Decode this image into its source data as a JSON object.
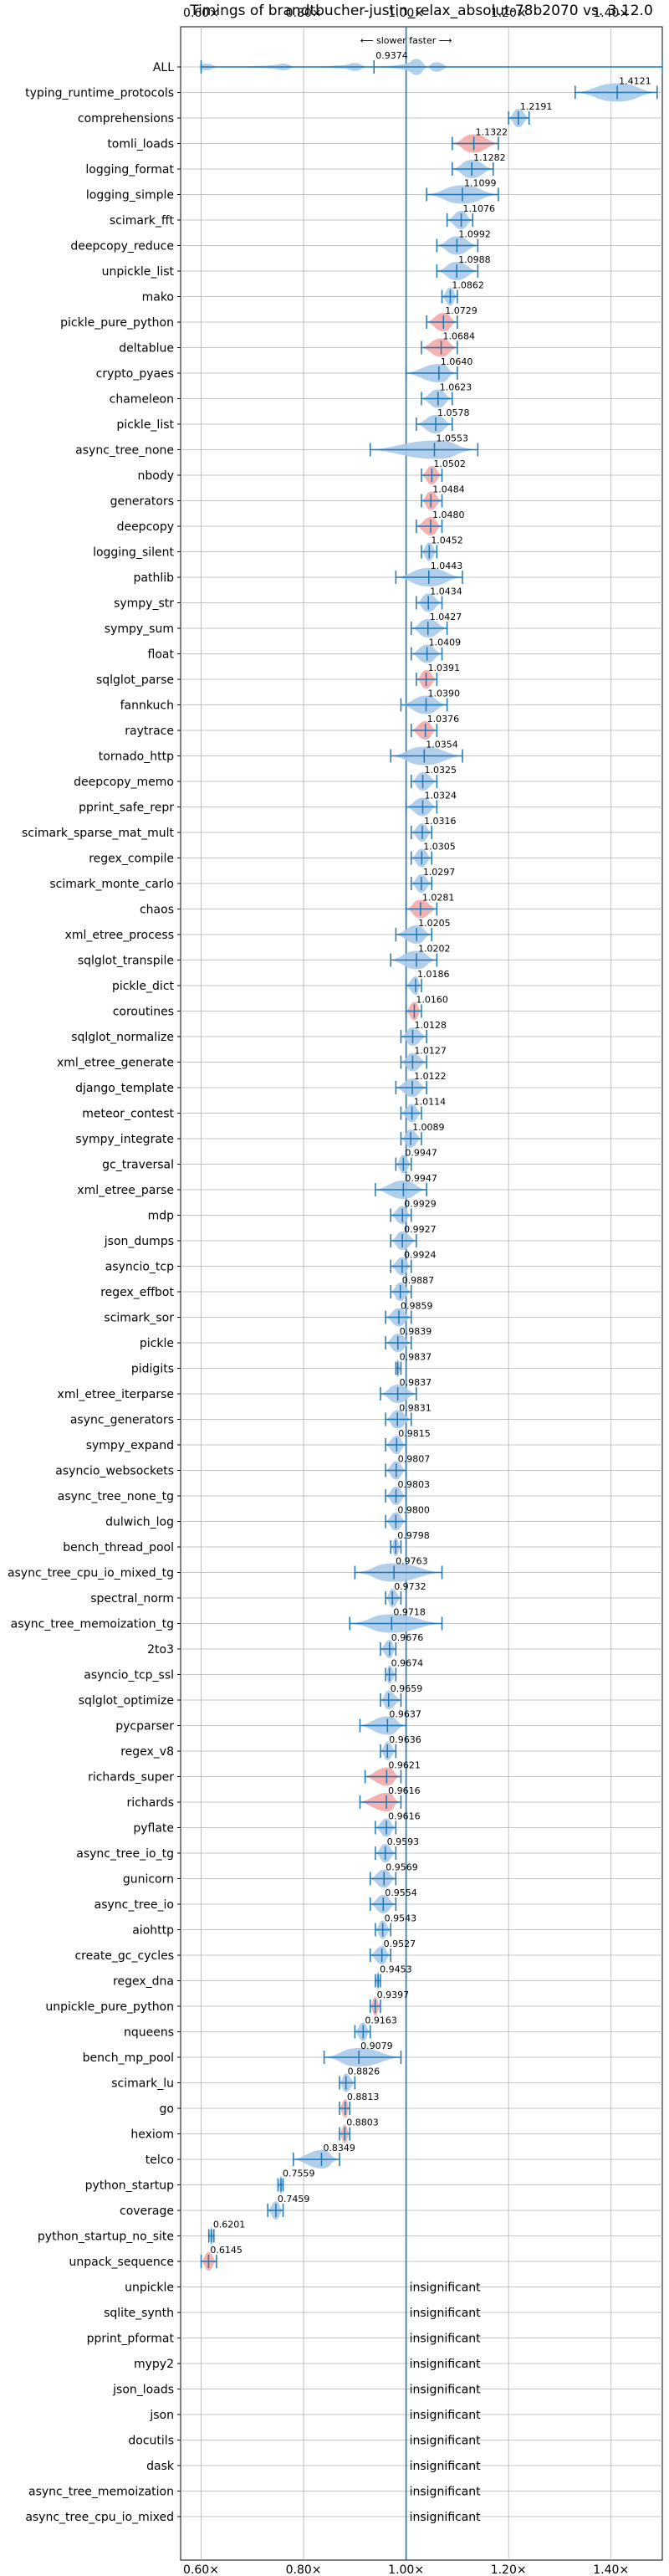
{
  "chart_data": {
    "type": "violin",
    "title": "Timings of brandtbucher-justin_relax_absolut-78b2070 vs. 3.12.0",
    "direction_label": "⟵ slower   faster ⟶",
    "xlim": [
      0.56,
      1.5
    ],
    "x_ticks": [
      "0.60×",
      "0.80×",
      "1.00×",
      "1.20×",
      "1.40×"
    ],
    "x_tick_values": [
      0.6,
      0.8,
      1.0,
      1.2,
      1.4
    ],
    "reference_x": 1.0,
    "colors": {
      "faster": "#a9c9e9",
      "slower": "#f4a7a7",
      "line": "#1f77b4",
      "grid": "#b0b0b0"
    },
    "insignificant_label": "insignificant",
    "benchmarks": [
      {
        "name": "ALL",
        "value": 0.9374,
        "label": "0.9374",
        "color": "blue",
        "shape": "multi",
        "min": 0.6,
        "max": 1.5
      },
      {
        "name": "typing_runtime_protocols",
        "value": 1.4121,
        "label": "1.4121",
        "color": "blue",
        "min": 1.33,
        "max": 1.49
      },
      {
        "name": "comprehensions",
        "value": 1.2191,
        "label": "1.2191",
        "color": "blue",
        "min": 1.2,
        "max": 1.24
      },
      {
        "name": "tomli_loads",
        "value": 1.1322,
        "label": "1.1322",
        "color": "red",
        "min": 1.09,
        "max": 1.18
      },
      {
        "name": "logging_format",
        "value": 1.1282,
        "label": "1.1282",
        "color": "blue",
        "min": 1.09,
        "max": 1.17
      },
      {
        "name": "logging_simple",
        "value": 1.1099,
        "label": "1.1099",
        "color": "blue",
        "min": 1.04,
        "max": 1.18
      },
      {
        "name": "scimark_fft",
        "value": 1.1076,
        "label": "1.1076",
        "color": "blue",
        "min": 1.08,
        "max": 1.13
      },
      {
        "name": "deepcopy_reduce",
        "value": 1.0992,
        "label": "1.0992",
        "color": "blue",
        "min": 1.06,
        "max": 1.14
      },
      {
        "name": "unpickle_list",
        "value": 1.0988,
        "label": "1.0988",
        "color": "blue",
        "min": 1.06,
        "max": 1.14
      },
      {
        "name": "mako",
        "value": 1.0862,
        "label": "1.0862",
        "color": "blue",
        "min": 1.07,
        "max": 1.1
      },
      {
        "name": "pickle_pure_python",
        "value": 1.0729,
        "label": "1.0729",
        "color": "red",
        "min": 1.04,
        "max": 1.1
      },
      {
        "name": "deltablue",
        "value": 1.0684,
        "label": "1.0684",
        "color": "red",
        "min": 1.03,
        "max": 1.1
      },
      {
        "name": "crypto_pyaes",
        "value": 1.064,
        "label": "1.0640",
        "color": "blue",
        "min": 1.0,
        "max": 1.1
      },
      {
        "name": "chameleon",
        "value": 1.0623,
        "label": "1.0623",
        "color": "blue",
        "min": 1.03,
        "max": 1.09
      },
      {
        "name": "pickle_list",
        "value": 1.0578,
        "label": "1.0578",
        "color": "blue",
        "min": 1.02,
        "max": 1.09
      },
      {
        "name": "async_tree_none",
        "value": 1.0553,
        "label": "1.0553",
        "color": "blue",
        "min": 0.93,
        "max": 1.14
      },
      {
        "name": "nbody",
        "value": 1.0502,
        "label": "1.0502",
        "color": "red",
        "min": 1.03,
        "max": 1.07
      },
      {
        "name": "generators",
        "value": 1.0484,
        "label": "1.0484",
        "color": "red",
        "min": 1.03,
        "max": 1.07
      },
      {
        "name": "deepcopy",
        "value": 1.048,
        "label": "1.0480",
        "color": "red",
        "min": 1.02,
        "max": 1.07
      },
      {
        "name": "logging_silent",
        "value": 1.0452,
        "label": "1.0452",
        "color": "blue",
        "min": 1.03,
        "max": 1.06
      },
      {
        "name": "pathlib",
        "value": 1.0443,
        "label": "1.0443",
        "color": "blue",
        "min": 0.98,
        "max": 1.11
      },
      {
        "name": "sympy_str",
        "value": 1.0434,
        "label": "1.0434",
        "color": "blue",
        "min": 1.02,
        "max": 1.07
      },
      {
        "name": "sympy_sum",
        "value": 1.0427,
        "label": "1.0427",
        "color": "blue",
        "min": 1.01,
        "max": 1.08
      },
      {
        "name": "float",
        "value": 1.0409,
        "label": "1.0409",
        "color": "blue",
        "min": 1.01,
        "max": 1.07
      },
      {
        "name": "sqlglot_parse",
        "value": 1.0391,
        "label": "1.0391",
        "color": "red",
        "min": 1.02,
        "max": 1.06
      },
      {
        "name": "fannkuch",
        "value": 1.039,
        "label": "1.0390",
        "color": "blue",
        "min": 0.99,
        "max": 1.08
      },
      {
        "name": "raytrace",
        "value": 1.0376,
        "label": "1.0376",
        "color": "red",
        "min": 1.01,
        "max": 1.06
      },
      {
        "name": "tornado_http",
        "value": 1.0354,
        "label": "1.0354",
        "color": "blue",
        "min": 0.97,
        "max": 1.11
      },
      {
        "name": "deepcopy_memo",
        "value": 1.0325,
        "label": "1.0325",
        "color": "blue",
        "min": 1.01,
        "max": 1.06
      },
      {
        "name": "pprint_safe_repr",
        "value": 1.0324,
        "label": "1.0324",
        "color": "blue",
        "min": 1.0,
        "max": 1.06
      },
      {
        "name": "scimark_sparse_mat_mult",
        "value": 1.0316,
        "label": "1.0316",
        "color": "blue",
        "min": 1.01,
        "max": 1.05
      },
      {
        "name": "regex_compile",
        "value": 1.0305,
        "label": "1.0305",
        "color": "blue",
        "min": 1.01,
        "max": 1.05
      },
      {
        "name": "scimark_monte_carlo",
        "value": 1.0297,
        "label": "1.0297",
        "color": "blue",
        "min": 1.01,
        "max": 1.05
      },
      {
        "name": "chaos",
        "value": 1.0281,
        "label": "1.0281",
        "color": "red",
        "min": 1.0,
        "max": 1.06
      },
      {
        "name": "xml_etree_process",
        "value": 1.0205,
        "label": "1.0205",
        "color": "blue",
        "min": 0.98,
        "max": 1.05
      },
      {
        "name": "sqlglot_transpile",
        "value": 1.0202,
        "label": "1.0202",
        "color": "blue",
        "min": 0.97,
        "max": 1.06
      },
      {
        "name": "pickle_dict",
        "value": 1.0186,
        "label": "1.0186",
        "color": "blue",
        "min": 1.0,
        "max": 1.03
      },
      {
        "name": "coroutines",
        "value": 1.016,
        "label": "1.0160",
        "color": "red",
        "min": 1.0,
        "max": 1.03
      },
      {
        "name": "sqlglot_normalize",
        "value": 1.0128,
        "label": "1.0128",
        "color": "blue",
        "min": 0.99,
        "max": 1.04
      },
      {
        "name": "xml_etree_generate",
        "value": 1.0127,
        "label": "1.0127",
        "color": "blue",
        "min": 0.99,
        "max": 1.04
      },
      {
        "name": "django_template",
        "value": 1.0122,
        "label": "1.0122",
        "color": "blue",
        "min": 0.98,
        "max": 1.04
      },
      {
        "name": "meteor_contest",
        "value": 1.0114,
        "label": "1.0114",
        "color": "blue",
        "min": 0.99,
        "max": 1.03
      },
      {
        "name": "sympy_integrate",
        "value": 1.0089,
        "label": "1.0089",
        "color": "blue",
        "min": 0.99,
        "max": 1.03
      },
      {
        "name": "gc_traversal",
        "value": 0.9947,
        "label": "0.9947",
        "color": "blue",
        "min": 0.98,
        "max": 1.01
      },
      {
        "name": "xml_etree_parse",
        "value": 0.9947,
        "label": "0.9947",
        "color": "blue",
        "min": 0.94,
        "max": 1.04
      },
      {
        "name": "mdp",
        "value": 0.9929,
        "label": "0.9929",
        "color": "blue",
        "min": 0.97,
        "max": 1.01
      },
      {
        "name": "json_dumps",
        "value": 0.9927,
        "label": "0.9927",
        "color": "blue",
        "min": 0.97,
        "max": 1.02
      },
      {
        "name": "asyncio_tcp",
        "value": 0.9924,
        "label": "0.9924",
        "color": "blue",
        "min": 0.97,
        "max": 1.01
      },
      {
        "name": "regex_effbot",
        "value": 0.9887,
        "label": "0.9887",
        "color": "blue",
        "min": 0.97,
        "max": 1.01
      },
      {
        "name": "scimark_sor",
        "value": 0.9859,
        "label": "0.9859",
        "color": "blue",
        "min": 0.96,
        "max": 1.01
      },
      {
        "name": "pickle",
        "value": 0.9839,
        "label": "0.9839",
        "color": "blue",
        "min": 0.96,
        "max": 1.01
      },
      {
        "name": "pidigits",
        "value": 0.9837,
        "label": "0.9837",
        "color": "blue",
        "min": 0.98,
        "max": 0.99
      },
      {
        "name": "xml_etree_iterparse",
        "value": 0.9837,
        "label": "0.9837",
        "color": "blue",
        "min": 0.95,
        "max": 1.02
      },
      {
        "name": "async_generators",
        "value": 0.9831,
        "label": "0.9831",
        "color": "blue",
        "min": 0.96,
        "max": 1.01
      },
      {
        "name": "sympy_expand",
        "value": 0.9815,
        "label": "0.9815",
        "color": "blue",
        "min": 0.96,
        "max": 1.0
      },
      {
        "name": "asyncio_websockets",
        "value": 0.9807,
        "label": "0.9807",
        "color": "blue",
        "min": 0.96,
        "max": 1.0
      },
      {
        "name": "async_tree_none_tg",
        "value": 0.9803,
        "label": "0.9803",
        "color": "blue",
        "min": 0.96,
        "max": 1.0
      },
      {
        "name": "dulwich_log",
        "value": 0.98,
        "label": "0.9800",
        "color": "blue",
        "min": 0.96,
        "max": 1.0
      },
      {
        "name": "bench_thread_pool",
        "value": 0.9798,
        "label": "0.9798",
        "color": "blue",
        "min": 0.97,
        "max": 0.99
      },
      {
        "name": "async_tree_cpu_io_mixed_tg",
        "value": 0.9763,
        "label": "0.9763",
        "color": "blue",
        "min": 0.9,
        "max": 1.07
      },
      {
        "name": "spectral_norm",
        "value": 0.9732,
        "label": "0.9732",
        "color": "blue",
        "min": 0.96,
        "max": 0.99
      },
      {
        "name": "async_tree_memoization_tg",
        "value": 0.9718,
        "label": "0.9718",
        "color": "blue",
        "min": 0.89,
        "max": 1.07
      },
      {
        "name": "2to3",
        "value": 0.9676,
        "label": "0.9676",
        "color": "blue",
        "min": 0.95,
        "max": 0.98
      },
      {
        "name": "asyncio_tcp_ssl",
        "value": 0.9674,
        "label": "0.9674",
        "color": "blue",
        "min": 0.96,
        "max": 0.98
      },
      {
        "name": "sqlglot_optimize",
        "value": 0.9659,
        "label": "0.9659",
        "color": "blue",
        "min": 0.95,
        "max": 0.99
      },
      {
        "name": "pycparser",
        "value": 0.9637,
        "label": "0.9637",
        "color": "blue",
        "min": 0.91,
        "max": 1.0
      },
      {
        "name": "regex_v8",
        "value": 0.9636,
        "label": "0.9636",
        "color": "blue",
        "min": 0.95,
        "max": 0.98
      },
      {
        "name": "richards_super",
        "value": 0.9621,
        "label": "0.9621",
        "color": "red",
        "min": 0.92,
        "max": 0.99
      },
      {
        "name": "richards",
        "value": 0.9616,
        "label": "0.9616",
        "color": "red",
        "min": 0.91,
        "max": 0.99
      },
      {
        "name": "pyflate",
        "value": 0.9616,
        "label": "0.9616",
        "color": "blue",
        "min": 0.94,
        "max": 0.98
      },
      {
        "name": "async_tree_io_tg",
        "value": 0.9593,
        "label": "0.9593",
        "color": "blue",
        "min": 0.94,
        "max": 0.98
      },
      {
        "name": "gunicorn",
        "value": 0.9569,
        "label": "0.9569",
        "color": "blue",
        "min": 0.93,
        "max": 0.98
      },
      {
        "name": "async_tree_io",
        "value": 0.9554,
        "label": "0.9554",
        "color": "blue",
        "min": 0.93,
        "max": 0.98
      },
      {
        "name": "aiohttp",
        "value": 0.9543,
        "label": "0.9543",
        "color": "blue",
        "min": 0.94,
        "max": 0.97
      },
      {
        "name": "create_gc_cycles",
        "value": 0.9527,
        "label": "0.9527",
        "color": "blue",
        "min": 0.93,
        "max": 0.97
      },
      {
        "name": "regex_dna",
        "value": 0.9453,
        "label": "0.9453",
        "color": "blue",
        "min": 0.94,
        "max": 0.95
      },
      {
        "name": "unpickle_pure_python",
        "value": 0.9397,
        "label": "0.9397",
        "color": "red",
        "min": 0.93,
        "max": 0.95
      },
      {
        "name": "nqueens",
        "value": 0.9163,
        "label": "0.9163",
        "color": "blue",
        "min": 0.9,
        "max": 0.93
      },
      {
        "name": "bench_mp_pool",
        "value": 0.9079,
        "label": "0.9079",
        "color": "blue",
        "min": 0.84,
        "max": 0.99
      },
      {
        "name": "scimark_lu",
        "value": 0.8826,
        "label": "0.8826",
        "color": "blue",
        "min": 0.87,
        "max": 0.9
      },
      {
        "name": "go",
        "value": 0.8813,
        "label": "0.8813",
        "color": "red",
        "min": 0.87,
        "max": 0.89
      },
      {
        "name": "hexiom",
        "value": 0.8803,
        "label": "0.8803",
        "color": "red",
        "min": 0.87,
        "max": 0.89
      },
      {
        "name": "telco",
        "value": 0.8349,
        "label": "0.8349",
        "color": "blue",
        "min": 0.78,
        "max": 0.87
      },
      {
        "name": "python_startup",
        "value": 0.7559,
        "label": "0.7559",
        "color": "blue",
        "min": 0.75,
        "max": 0.76
      },
      {
        "name": "coverage",
        "value": 0.7459,
        "label": "0.7459",
        "color": "blue",
        "min": 0.73,
        "max": 0.76
      },
      {
        "name": "python_startup_no_site",
        "value": 0.6201,
        "label": "0.6201",
        "color": "blue",
        "min": 0.615,
        "max": 0.625
      },
      {
        "name": "unpack_sequence",
        "value": 0.6145,
        "label": "0.6145",
        "color": "red",
        "min": 0.6,
        "max": 0.63
      },
      {
        "name": "unpickle",
        "insignificant": true
      },
      {
        "name": "sqlite_synth",
        "insignificant": true
      },
      {
        "name": "pprint_pformat",
        "insignificant": true
      },
      {
        "name": "mypy2",
        "insignificant": true
      },
      {
        "name": "json_loads",
        "insignificant": true
      },
      {
        "name": "json",
        "insignificant": true
      },
      {
        "name": "docutils",
        "insignificant": true
      },
      {
        "name": "dask",
        "insignificant": true
      },
      {
        "name": "async_tree_memoization",
        "insignificant": true
      },
      {
        "name": "async_tree_cpu_io_mixed",
        "insignificant": true
      }
    ]
  }
}
